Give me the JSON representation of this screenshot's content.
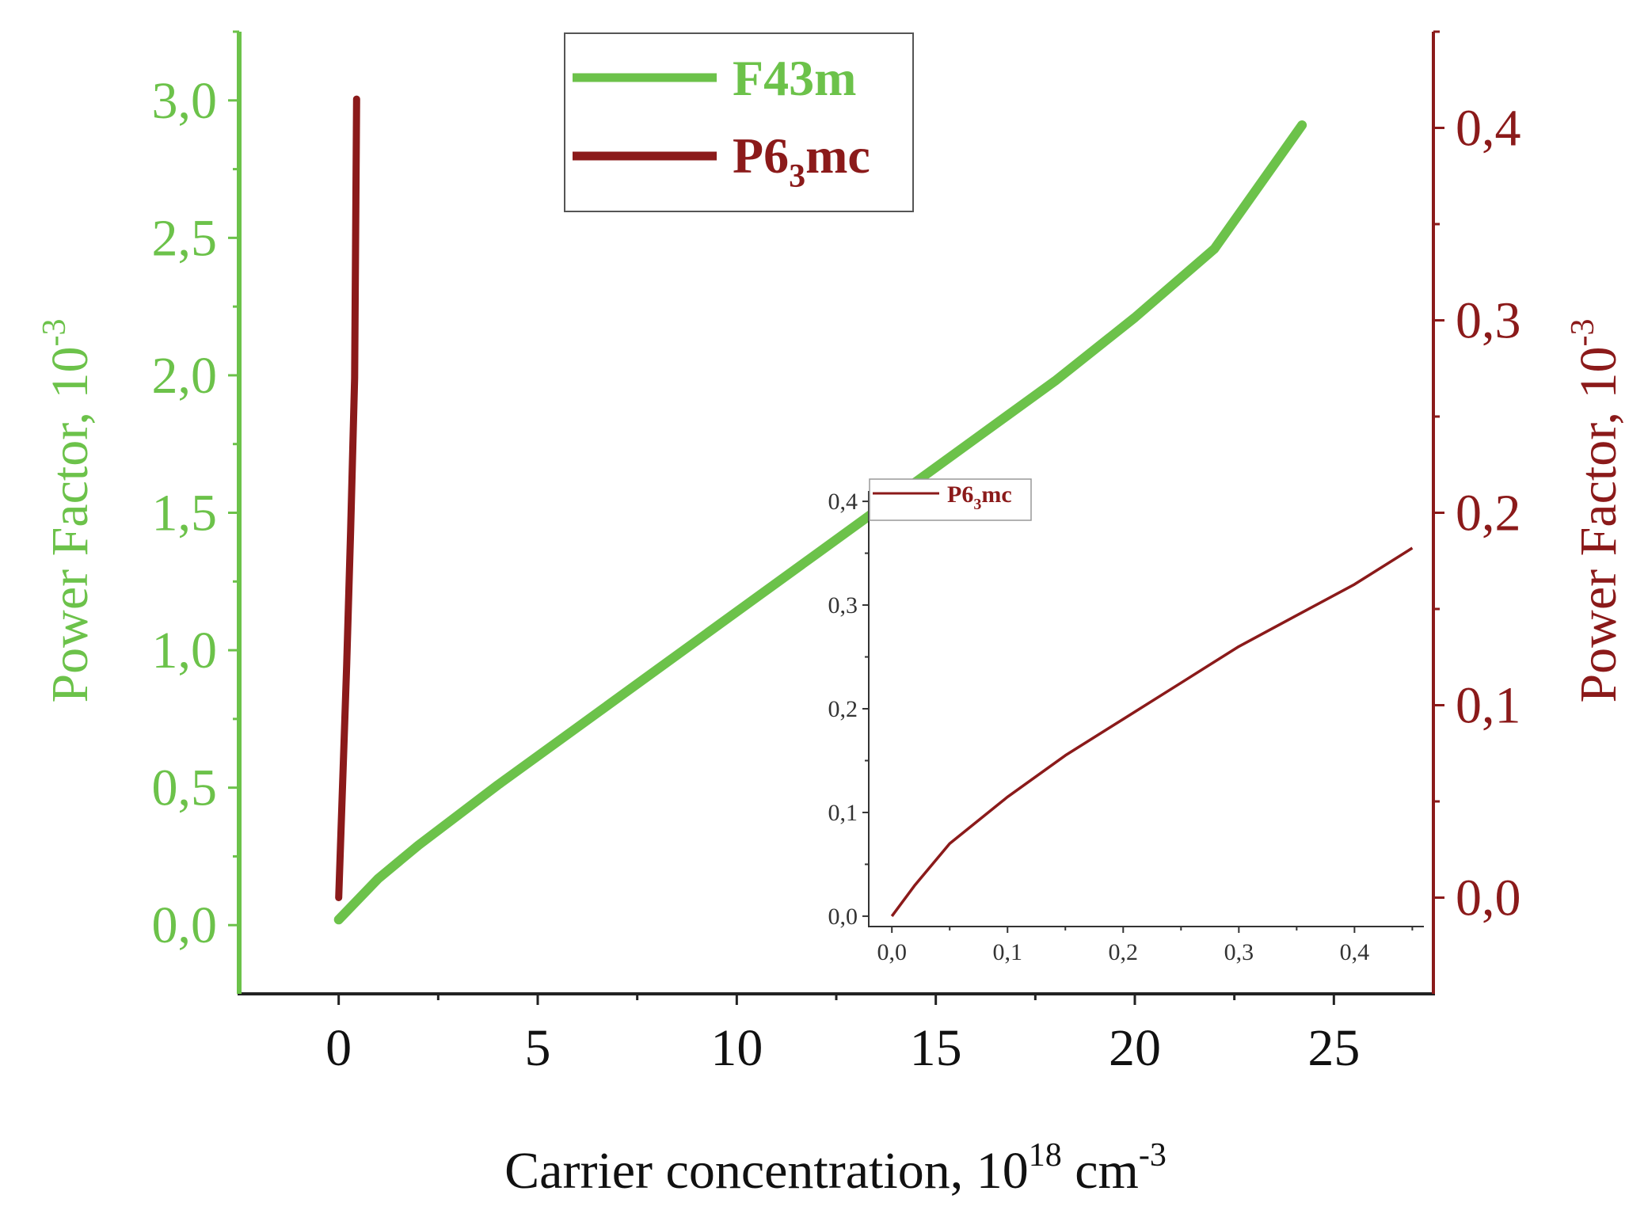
{
  "chart_data": [
    {
      "type": "line",
      "xlabel": {
        "base": "Carrier concentration, 10",
        "sup1": "18",
        "mid": " cm",
        "sup2": "-3"
      },
      "ylabel_left": {
        "base": "Power Factor, 10",
        "sup": "-3"
      },
      "ylabel_right": {
        "base": "Power Factor, 10",
        "sup": "-3"
      },
      "xlim": [
        -2.5,
        27.5
      ],
      "ylim_left": [
        -0.25,
        3.25
      ],
      "ylim_right": [
        -0.05,
        0.45
      ],
      "xticks": [
        0,
        5,
        10,
        15,
        20,
        25
      ],
      "xtick_labels": [
        "0",
        "5",
        "10",
        "15",
        "20",
        "25"
      ],
      "yticks_left": [
        0,
        0.5,
        1.0,
        1.5,
        2.0,
        2.5,
        3.0
      ],
      "ytick_labels_left": [
        "0,0",
        "0,5",
        "1,0",
        "1,5",
        "2,0",
        "2,5",
        "3,0"
      ],
      "yticks_right": [
        0,
        0.1,
        0.2,
        0.3,
        0.4
      ],
      "ytick_labels_right": [
        "0,0",
        "0,1",
        "0,2",
        "0,3",
        "0,4"
      ],
      "grid": false,
      "legend_position": "top-center",
      "series": [
        {
          "name": "F43m",
          "legend": {
            "base": "F43m"
          },
          "axis": "left",
          "color": "#6cc24a",
          "x": [
            0,
            1,
            2,
            4,
            6,
            8,
            10,
            12,
            14,
            16,
            18,
            20,
            22,
            24.2
          ],
          "y": [
            0.02,
            0.17,
            0.29,
            0.51,
            0.72,
            0.93,
            1.14,
            1.35,
            1.56,
            1.77,
            1.98,
            2.21,
            2.46,
            2.91
          ]
        },
        {
          "name": "P6₃mc",
          "legend": {
            "base": "P6",
            "sub": "3",
            "tail": "mc"
          },
          "axis": "right",
          "color": "#8b1a1a",
          "x": [
            0,
            0.1,
            0.2,
            0.3,
            0.4,
            0.45
          ],
          "y": [
            0.0,
            0.06,
            0.12,
            0.19,
            0.27,
            0.415
          ]
        }
      ]
    },
    {
      "type": "line",
      "inset": true,
      "xlim": [
        -0.02,
        0.46
      ],
      "ylim": [
        -0.01,
        0.41
      ],
      "xticks": [
        0,
        0.1,
        0.2,
        0.3,
        0.4
      ],
      "xtick_labels": [
        "0,0",
        "0,1",
        "0,2",
        "0,3",
        "0,4"
      ],
      "yticks": [
        0,
        0.1,
        0.2,
        0.3,
        0.4
      ],
      "ytick_labels": [
        "0,0",
        "0,1",
        "0,2",
        "0,3",
        "0,4"
      ],
      "legend_position": "top-left",
      "series": [
        {
          "name": "P6₃mc",
          "legend": {
            "base": "P6",
            "sub": "3",
            "tail": "mc"
          },
          "color": "#8b1a1a",
          "x": [
            0,
            0.02,
            0.05,
            0.1,
            0.15,
            0.2,
            0.25,
            0.3,
            0.35,
            0.4,
            0.45
          ],
          "y": [
            0.0,
            0.03,
            0.07,
            0.115,
            0.155,
            0.19,
            0.225,
            0.26,
            0.29,
            0.32,
            0.355
          ]
        }
      ]
    }
  ],
  "colors": {
    "green": "#6cc24a",
    "darkred": "#8b1a1a",
    "axis": "#222222"
  }
}
